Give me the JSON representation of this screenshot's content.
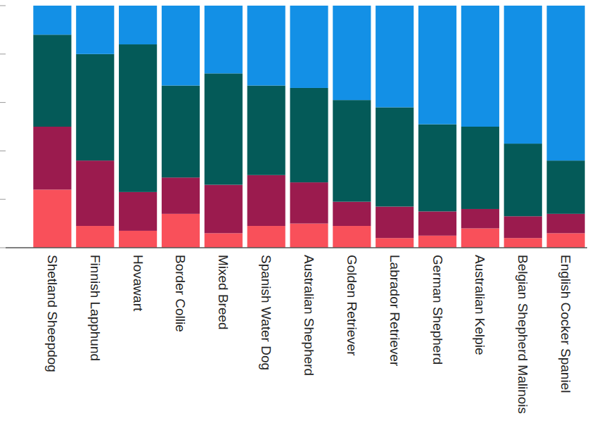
{
  "chart_data": {
    "type": "bar",
    "stacked": true,
    "categories": [
      "Shetland Sheepdog",
      "Finnish Lapphund",
      "Hovawart",
      "Border Collie",
      "Mixed Breed",
      "Spanish Water Dog",
      "Australian Shepherd",
      "Golden Retriever",
      "Labrador Retriever",
      "German Shepherd",
      "Australian Kelpie",
      "Belgian Shepherd Malinois",
      "English Cocker Spaniel"
    ],
    "series": [
      {
        "color": "#f9505a",
        "values": [
          24,
          9,
          7,
          14,
          6,
          9,
          10,
          9,
          4,
          5,
          8,
          4,
          6
        ]
      },
      {
        "color": "#9b1b4e",
        "values": [
          26,
          27,
          16,
          15,
          20,
          21,
          17,
          10,
          13,
          10,
          8,
          9,
          8
        ]
      },
      {
        "color": "#045a58",
        "values": [
          38,
          44,
          61,
          38,
          46,
          37,
          39,
          42,
          41,
          36,
          34,
          30,
          22
        ]
      },
      {
        "color": "#1390e6",
        "values": [
          12,
          20,
          16,
          33,
          28,
          33,
          34,
          39,
          42,
          49,
          50,
          57,
          64
        ]
      }
    ],
    "ylim": [
      0,
      100
    ],
    "yticks": [
      0,
      20,
      40,
      60,
      80,
      100
    ],
    "grid": false,
    "tick_labels": "x"
  }
}
